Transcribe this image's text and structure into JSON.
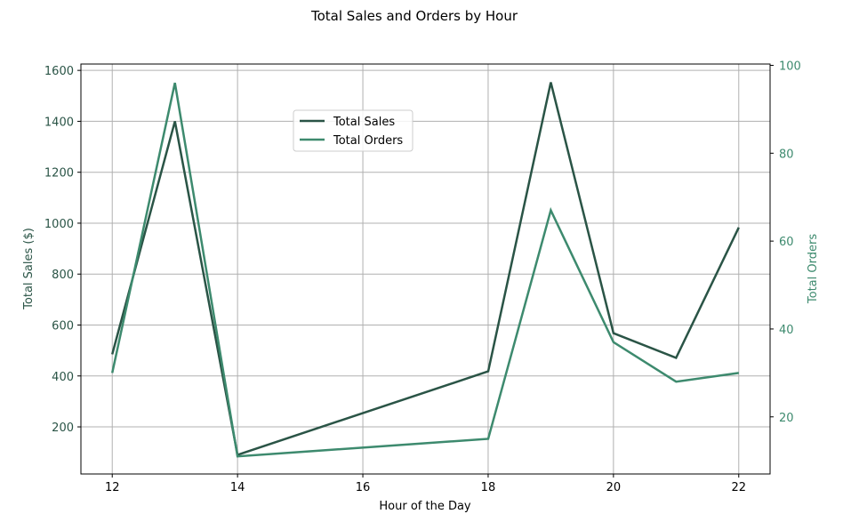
{
  "chart_data": {
    "type": "line",
    "title": "Total Sales and Orders by Hour",
    "xlabel": "Hour of the Day",
    "ylabel_left": "Total Sales ($)",
    "ylabel_right": "Total Orders",
    "x": [
      12,
      13,
      14,
      18,
      19,
      20,
      21,
      22
    ],
    "xlim": [
      11.5,
      22.5
    ],
    "xticks": [
      12,
      14,
      16,
      18,
      20,
      22
    ],
    "ylim_left": [
      15,
      1625
    ],
    "yticks_left": [
      200,
      400,
      600,
      800,
      1000,
      1200,
      1400,
      1600
    ],
    "ylim_right": [
      7,
      100.3
    ],
    "yticks_right": [
      20,
      40,
      60,
      80,
      100
    ],
    "grid": true,
    "legend_position": "upper-center",
    "series": [
      {
        "name": "Total Sales",
        "axis": "left",
        "color": "#2a5446",
        "values": [
          485,
          1400,
          90,
          418,
          1553,
          568,
          471,
          983
        ]
      },
      {
        "name": "Total Orders",
        "axis": "right",
        "color": "#3d8a6e",
        "values": [
          30,
          96,
          11,
          15,
          67,
          37,
          28,
          30
        ]
      }
    ],
    "colors": {
      "left_axis": "#2a5446",
      "right_axis": "#3d8a6e",
      "grid": "#b0b0b0"
    }
  }
}
